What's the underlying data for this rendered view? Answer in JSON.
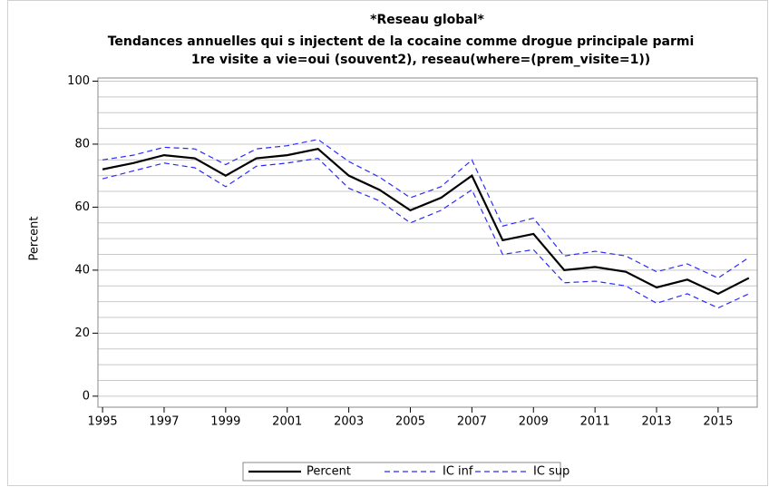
{
  "chart_data": {
    "type": "line",
    "title": "*Reseau global*",
    "subtitle": [
      "Tendances annuelles qui s injectent de la cocaine comme drogue principale parmi",
      "1re visite a vie=oui (souvent2), reseau(where=(prem_visite=1))"
    ],
    "ylabel": "Percent",
    "x": [
      1995,
      1996,
      1997,
      1998,
      1999,
      2000,
      2001,
      2002,
      2003,
      2004,
      2005,
      2006,
      2007,
      2008,
      2009,
      2010,
      2011,
      2012,
      2013,
      2014,
      2015,
      2016
    ],
    "series": [
      {
        "name": "Percent",
        "color": "#000000",
        "dash": false,
        "values": [
          72,
          74,
          76.5,
          75.5,
          70,
          75.5,
          76.5,
          78.5,
          70,
          65.5,
          59,
          63,
          70,
          49.5,
          51.5,
          40,
          41,
          39.5,
          34.5,
          37,
          32.5,
          37.5
        ]
      },
      {
        "name": "IC inf",
        "color": "#2a2aff",
        "dash": true,
        "values": [
          69,
          71.5,
          74,
          72.5,
          66.5,
          73,
          74,
          75.5,
          66,
          62,
          55,
          59,
          65.5,
          45,
          46.5,
          36,
          36.5,
          35,
          29.5,
          32.5,
          28,
          32.5
        ]
      },
      {
        "name": "IC sup",
        "color": "#2a2aff",
        "dash": true,
        "values": [
          75,
          76.5,
          79,
          78.5,
          73.5,
          78.5,
          79.5,
          81.5,
          74.5,
          69.5,
          63,
          66.5,
          75,
          54,
          56.5,
          44.5,
          46,
          44.5,
          39.5,
          42,
          37.5,
          44
        ]
      }
    ],
    "xlim": [
      1994.85,
      2016.27
    ],
    "xticks": [
      1995,
      1997,
      1999,
      2001,
      2003,
      2005,
      2007,
      2009,
      2011,
      2013,
      2015
    ],
    "ylim": [
      -3.5,
      101
    ],
    "yticks": [
      0,
      20,
      40,
      60,
      80,
      100
    ],
    "ygrid": [
      0,
      5,
      10,
      15,
      20,
      25,
      30,
      35,
      40,
      45,
      50,
      55,
      60,
      65,
      70,
      75,
      80,
      85,
      90,
      95,
      100
    ],
    "grid": true,
    "legend": "bottom"
  }
}
